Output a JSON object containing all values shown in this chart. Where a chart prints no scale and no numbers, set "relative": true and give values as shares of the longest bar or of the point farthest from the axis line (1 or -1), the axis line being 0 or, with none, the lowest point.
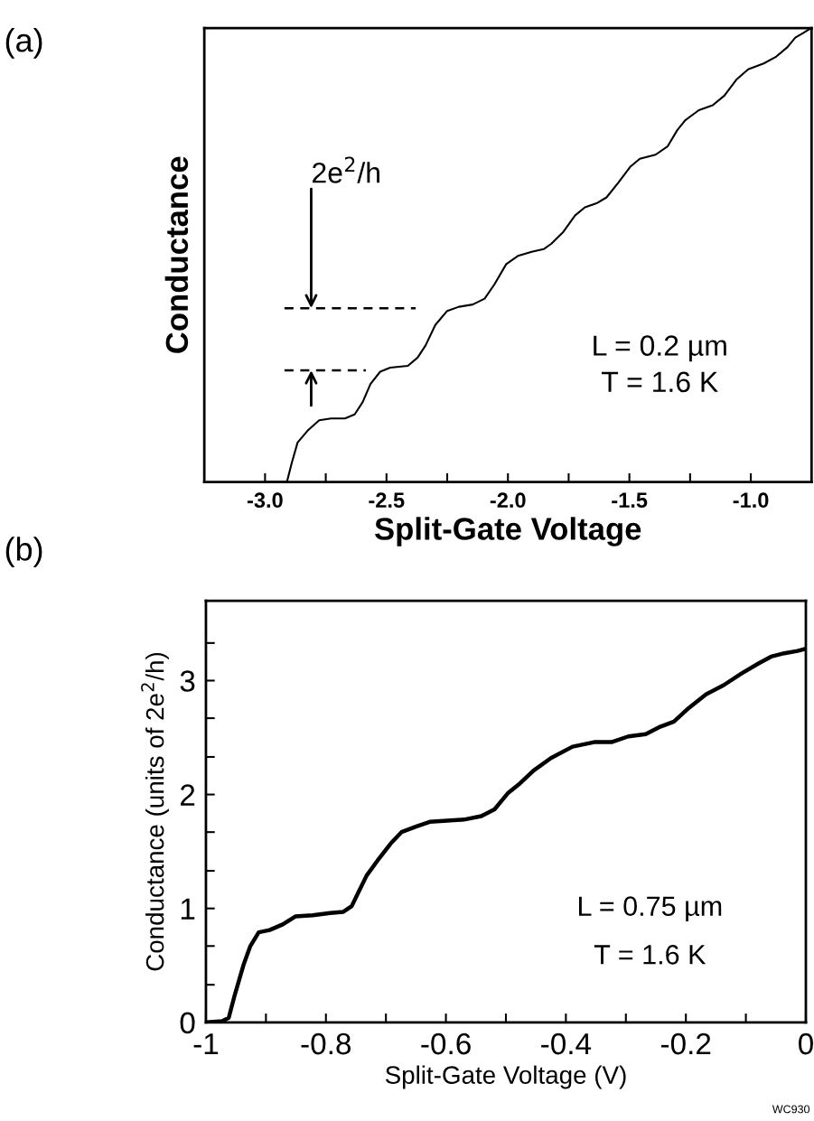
{
  "chart_data": [
    {
      "type": "line",
      "title": "(a)",
      "xlabel": "Split-Gate Voltage",
      "ylabel": "Conductance",
      "relative": true,
      "xlim": [
        -3.25,
        -0.75
      ],
      "xticks": [
        {
          "value": -3.0,
          "label": "-3.0"
        },
        {
          "value": -2.75,
          "label": null
        },
        {
          "value": -2.5,
          "label": "-2.5"
        },
        {
          "value": -2.25,
          "label": null
        },
        {
          "value": -2.0,
          "label": "-2.0"
        },
        {
          "value": -1.75,
          "label": null
        },
        {
          "value": -1.5,
          "label": "-1.5"
        },
        {
          "value": -1.25,
          "label": null
        },
        {
          "value": -1.0,
          "label": "-1.0"
        }
      ],
      "tick_labels": "x",
      "series": [
        {
          "color": "#000000",
          "x": [
            -3.0,
            -2.91,
            -2.89,
            -2.866,
            -2.825,
            -2.777,
            -2.728,
            -2.671,
            -2.631,
            -2.598,
            -2.566,
            -2.526,
            -2.485,
            -2.412,
            -2.372,
            -2.339,
            -2.299,
            -2.25,
            -2.202,
            -2.145,
            -2.096,
            -2.056,
            -2.007,
            -1.959,
            -1.902,
            -1.853,
            -1.821,
            -1.772,
            -1.724,
            -1.683,
            -1.635,
            -1.594,
            -1.546,
            -1.497,
            -1.457,
            -1.392,
            -1.343,
            -1.303,
            -1.27,
            -1.214,
            -1.157,
            -1.109,
            -1.06,
            -1.011,
            -0.947,
            -0.898,
            -0.849,
            -0.817,
            -0.785,
            -0.752
          ],
          "values": [
            0,
            0,
            0.042,
            0.087,
            0.113,
            0.136,
            0.14,
            0.14,
            0.149,
            0.176,
            0.216,
            0.243,
            0.252,
            0.256,
            0.274,
            0.301,
            0.346,
            0.377,
            0.386,
            0.391,
            0.404,
            0.435,
            0.48,
            0.498,
            0.507,
            0.513,
            0.525,
            0.551,
            0.587,
            0.605,
            0.614,
            0.627,
            0.659,
            0.694,
            0.712,
            0.721,
            0.739,
            0.775,
            0.797,
            0.819,
            0.83,
            0.851,
            0.886,
            0.909,
            0.922,
            0.936,
            0.958,
            0.979,
            0.989,
            1.0
          ]
        },
        {
          "color": "#000000",
          "line_style": "dashed",
          "x": [
            -2.92,
            -2.38
          ],
          "values": [
            0.383,
            0.383
          ]
        },
        {
          "color": "#000000",
          "line_style": "dashed",
          "x": [
            -2.92,
            -2.585
          ],
          "values": [
            0.246,
            0.246
          ]
        }
      ],
      "annotations": [
        {
          "text": "2e$^{2}$/h",
          "x": -2.81,
          "y": 0.383
        },
        "L = 0.2 µm",
        "T = 1.6 K"
      ]
    },
    {
      "type": "line",
      "title": "(b)",
      "xlabel": "Split-Gate Voltage (V)",
      "ylabel": "Conductance (units of 2e$^{2}$/h)",
      "xlim": [
        -1,
        0
      ],
      "ylim": [
        0,
        3.7
      ],
      "xticks": [
        {
          "value": -1,
          "label": "-1"
        },
        {
          "value": -0.9,
          "label": null
        },
        {
          "value": -0.8,
          "label": "-0.8"
        },
        {
          "value": -0.7,
          "label": null
        },
        {
          "value": -0.6,
          "label": "-0.6"
        },
        {
          "value": -0.5,
          "label": null
        },
        {
          "value": -0.4,
          "label": "-0.4"
        },
        {
          "value": -0.3,
          "label": null
        },
        {
          "value": -0.2,
          "label": "-0.2"
        },
        {
          "value": -0.1,
          "label": null
        },
        {
          "value": 0,
          "label": "0"
        }
      ],
      "yticks": [
        0,
        {
          "value": 0.33,
          "label": null
        },
        {
          "value": 0.67,
          "label": null
        },
        1,
        {
          "value": 1.33,
          "label": null
        },
        {
          "value": 1.67,
          "label": null
        },
        2,
        {
          "value": 2.33,
          "label": null
        },
        {
          "value": 2.67,
          "label": null
        },
        3,
        {
          "value": 3.33,
          "label": null
        }
      ],
      "series": [
        {
          "color": "#000000",
          "x": [
            -0.999,
            -0.973,
            -0.962,
            -0.952,
            -0.937,
            -0.926,
            -0.912,
            -0.894,
            -0.872,
            -0.851,
            -0.822,
            -0.793,
            -0.771,
            -0.757,
            -0.746,
            -0.732,
            -0.714,
            -0.692,
            -0.674,
            -0.649,
            -0.627,
            -0.598,
            -0.57,
            -0.541,
            -0.519,
            -0.497,
            -0.476,
            -0.454,
            -0.425,
            -0.389,
            -0.353,
            -0.324,
            -0.296,
            -0.267,
            -0.245,
            -0.22,
            -0.195,
            -0.166,
            -0.137,
            -0.108,
            -0.079,
            -0.058,
            -0.036,
            -0.014,
            0.0
          ],
          "values": [
            0,
            0.01,
            0.04,
            0.24,
            0.51,
            0.67,
            0.79,
            0.81,
            0.86,
            0.93,
            0.94,
            0.96,
            0.97,
            1.02,
            1.14,
            1.29,
            1.42,
            1.57,
            1.67,
            1.72,
            1.76,
            1.77,
            1.78,
            1.81,
            1.87,
            2.01,
            2.1,
            2.21,
            2.32,
            2.42,
            2.46,
            2.46,
            2.51,
            2.53,
            2.59,
            2.64,
            2.76,
            2.88,
            2.96,
            3.06,
            3.15,
            3.21,
            3.24,
            3.26,
            3.28
          ]
        }
      ],
      "annotations": [
        "L = 0.75 µm",
        "T = 1.6 K",
        "WC930"
      ]
    }
  ]
}
